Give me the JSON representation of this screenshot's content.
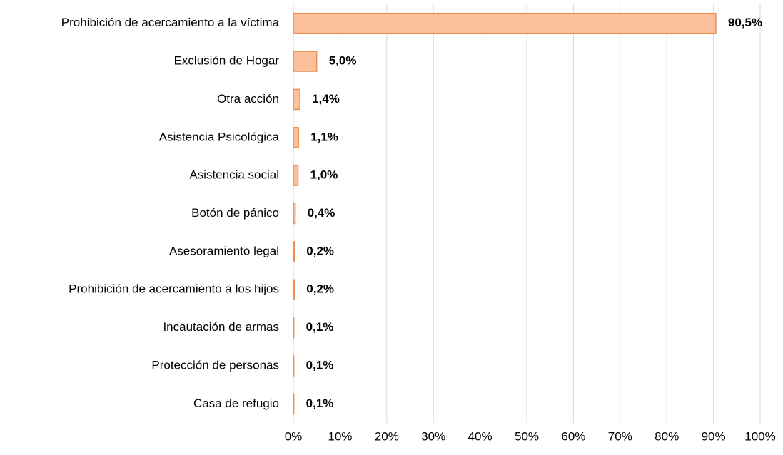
{
  "chart_data": {
    "type": "barh",
    "categories": [
      "Prohibición de acercamiento a la víctima",
      "Exclusión de Hogar",
      "Otra acción",
      "Asistencia Psicológica",
      "Asistencia social",
      "Botón de pánico",
      "Asesoramiento legal",
      "Prohibición de acercamiento a los hijos",
      "Incautación de armas",
      "Protección de personas",
      "Casa de refugio"
    ],
    "values": [
      90.5,
      5.0,
      1.4,
      1.1,
      1.0,
      0.4,
      0.2,
      0.2,
      0.1,
      0.1,
      0.1
    ],
    "value_labels": [
      "90,5%",
      "5,0%",
      "1,4%",
      "1,1%",
      "1,0%",
      "0,4%",
      "0,2%",
      "0,2%",
      "0,1%",
      "0,1%",
      "0,1%"
    ],
    "color": "#f9c09b",
    "edge_color": "#ed8d4e",
    "xlim": [
      0,
      100
    ],
    "xticks": [
      {
        "value": 0,
        "label": "0%"
      },
      {
        "value": 10,
        "label": "10%"
      },
      {
        "value": 20,
        "label": "20%"
      },
      {
        "value": 30,
        "label": "30%"
      },
      {
        "value": 40,
        "label": "40%"
      },
      {
        "value": 50,
        "label": "50%"
      },
      {
        "value": 60,
        "label": "60%"
      },
      {
        "value": 70,
        "label": "70%"
      },
      {
        "value": 80,
        "label": "80%"
      },
      {
        "value": 90,
        "label": "90%"
      },
      {
        "value": 100,
        "label": "100%"
      }
    ],
    "grid": true
  }
}
